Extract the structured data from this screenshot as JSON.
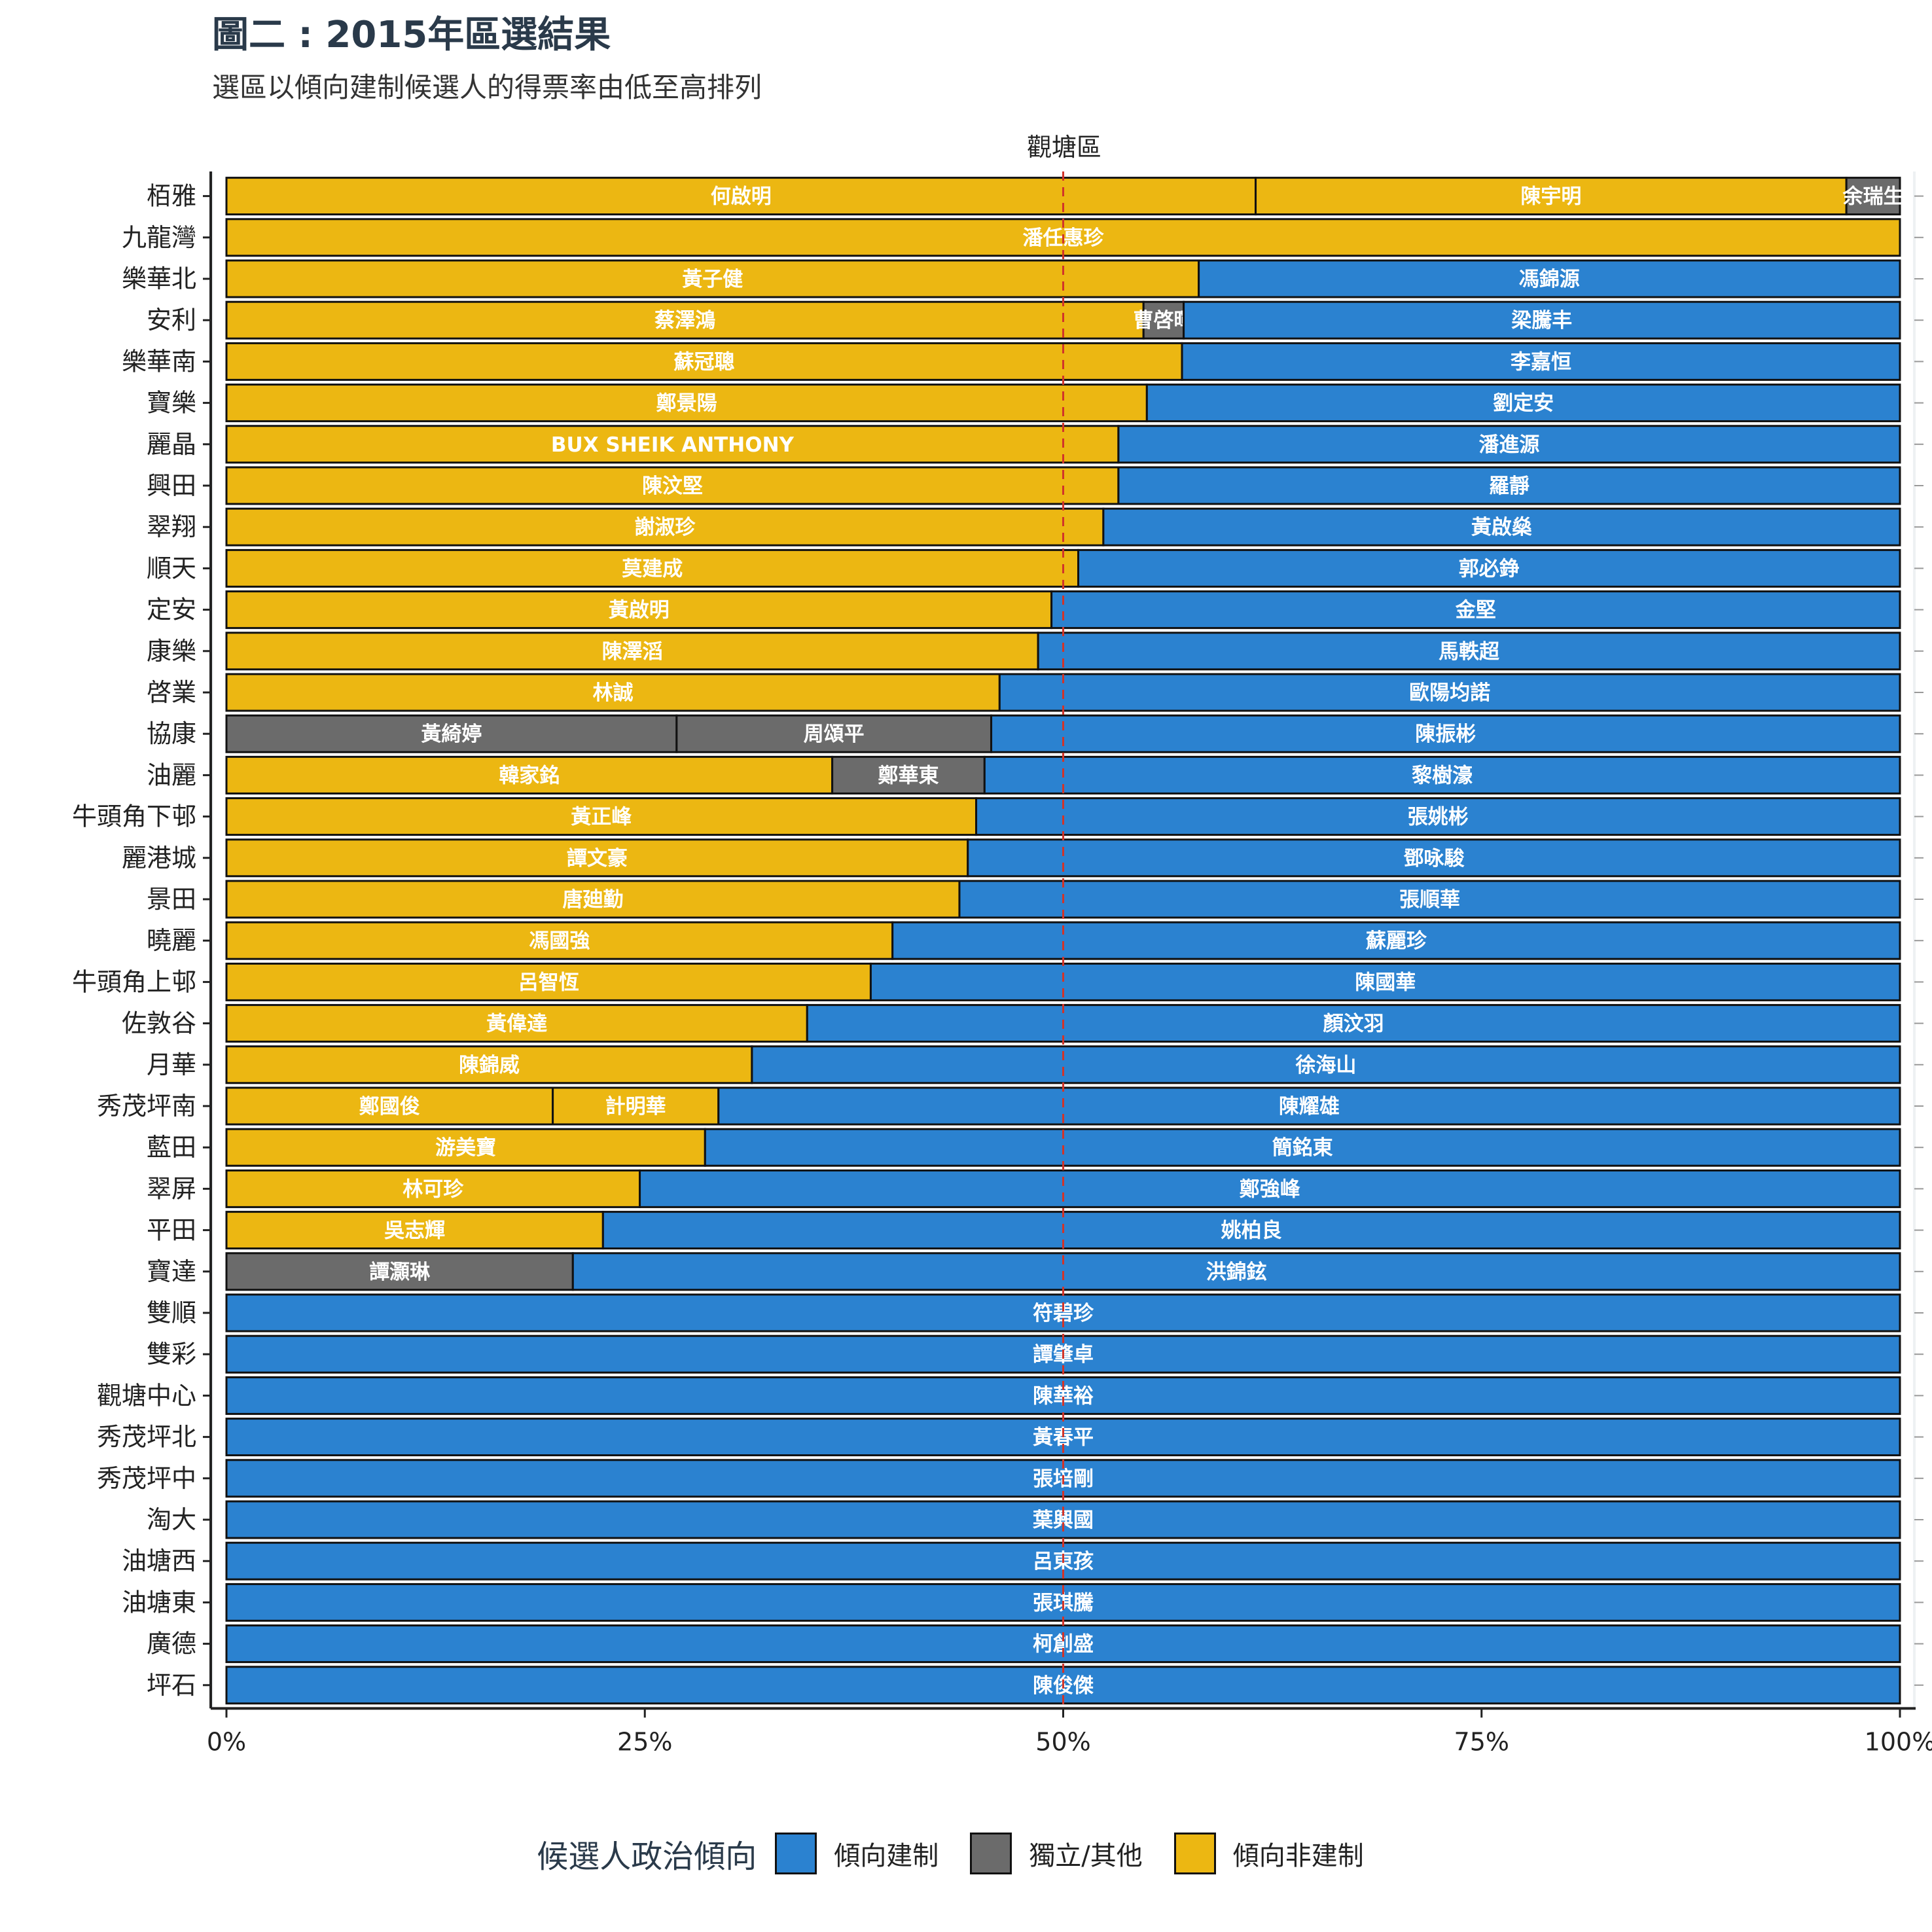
{
  "title": "圖二 : 2015年區選結果",
  "subtitle": "選區以傾向建制候選人的得票率由低至高排列",
  "colors": {
    "傾向建制": "#2b82d0",
    "獨立/其他": "#6b6b6b",
    "傾向非建制": "#ecb712",
    "reference_line": "#d1342a"
  },
  "legend": {
    "title": "候選人政治傾向",
    "items": [
      {
        "label": "傾向建制",
        "key": "傾向建制"
      },
      {
        "label": "獨立/其他",
        "key": "獨立/其他"
      },
      {
        "label": "傾向非建制",
        "key": "傾向非建制"
      }
    ]
  },
  "chart_data": {
    "type": "bar",
    "orientation": "horizontal",
    "stacked": "percent",
    "facet_label": "觀塘區",
    "x_ticks": [
      "0%",
      "25%",
      "50%",
      "75%",
      "100%"
    ],
    "xlim": [
      0,
      100
    ],
    "reference_line_x": 50,
    "legend_position": "bottom",
    "rows": [
      {
        "district": "栢雅",
        "segments": [
          {
            "name": "何啟明",
            "camp": "傾向非建制",
            "share": 61.5
          },
          {
            "name": "陳宇明",
            "camp": "傾向非建制",
            "share": 35.3
          },
          {
            "name": "余瑞生",
            "camp": "獨立/其他",
            "share": 3.2
          }
        ]
      },
      {
        "district": "九龍灣",
        "segments": [
          {
            "name": "潘任惠珍",
            "camp": "傾向非建制",
            "share": 100
          }
        ]
      },
      {
        "district": "樂華北",
        "segments": [
          {
            "name": "黃子健",
            "camp": "傾向非建制",
            "share": 58.1
          },
          {
            "name": "馮錦源",
            "camp": "傾向建制",
            "share": 41.9
          }
        ]
      },
      {
        "district": "安利",
        "segments": [
          {
            "name": "蔡澤鴻",
            "camp": "傾向非建制",
            "share": 54.8
          },
          {
            "name": "曹啓暉",
            "camp": "獨立/其他",
            "share": 2.4
          },
          {
            "name": "梁騰丰",
            "camp": "傾向建制",
            "share": 42.8
          }
        ]
      },
      {
        "district": "樂華南",
        "segments": [
          {
            "name": "蘇冠聰",
            "camp": "傾向非建制",
            "share": 57.1
          },
          {
            "name": "李嘉恒",
            "camp": "傾向建制",
            "share": 42.9
          }
        ]
      },
      {
        "district": "寶樂",
        "segments": [
          {
            "name": "鄭景陽",
            "camp": "傾向非建制",
            "share": 55.0
          },
          {
            "name": "劉定安",
            "camp": "傾向建制",
            "share": 45.0
          }
        ]
      },
      {
        "district": "麗晶",
        "segments": [
          {
            "name": "BUX SHEIK ANTHONY",
            "camp": "傾向非建制",
            "share": 53.3
          },
          {
            "name": "潘進源",
            "camp": "傾向建制",
            "share": 46.7
          }
        ]
      },
      {
        "district": "興田",
        "segments": [
          {
            "name": "陳汶堅",
            "camp": "傾向非建制",
            "share": 53.3
          },
          {
            "name": "羅靜",
            "camp": "傾向建制",
            "share": 46.7
          }
        ]
      },
      {
        "district": "翠翔",
        "segments": [
          {
            "name": "謝淑珍",
            "camp": "傾向非建制",
            "share": 52.4
          },
          {
            "name": "黃啟燊",
            "camp": "傾向建制",
            "share": 47.6
          }
        ]
      },
      {
        "district": "順天",
        "segments": [
          {
            "name": "莫建成",
            "camp": "傾向非建制",
            "share": 50.9
          },
          {
            "name": "郭必錚",
            "camp": "傾向建制",
            "share": 49.1
          }
        ]
      },
      {
        "district": "定安",
        "segments": [
          {
            "name": "黃啟明",
            "camp": "傾向非建制",
            "share": 49.3
          },
          {
            "name": "金堅",
            "camp": "傾向建制",
            "share": 50.7
          }
        ]
      },
      {
        "district": "康樂",
        "segments": [
          {
            "name": "陳澤滔",
            "camp": "傾向非建制",
            "share": 48.5
          },
          {
            "name": "馬軼超",
            "camp": "傾向建制",
            "share": 51.5
          }
        ]
      },
      {
        "district": "啓業",
        "segments": [
          {
            "name": "林誠",
            "camp": "傾向非建制",
            "share": 46.2
          },
          {
            "name": "歐陽均諾",
            "camp": "傾向建制",
            "share": 53.8
          }
        ]
      },
      {
        "district": "協康",
        "segments": [
          {
            "name": "黃綺婷",
            "camp": "獨立/其他",
            "share": 26.9
          },
          {
            "name": "周頌平",
            "camp": "獨立/其他",
            "share": 18.8
          },
          {
            "name": "陳振彬",
            "camp": "傾向建制",
            "share": 54.3
          }
        ]
      },
      {
        "district": "油麗",
        "segments": [
          {
            "name": "韓家銘",
            "camp": "傾向非建制",
            "share": 36.2
          },
          {
            "name": "鄭華東",
            "camp": "獨立/其他",
            "share": 9.1
          },
          {
            "name": "黎樹濠",
            "camp": "傾向建制",
            "share": 54.7
          }
        ]
      },
      {
        "district": "牛頭角下邨",
        "segments": [
          {
            "name": "黃正峰",
            "camp": "傾向非建制",
            "share": 44.8
          },
          {
            "name": "張姚彬",
            "camp": "傾向建制",
            "share": 55.2
          }
        ]
      },
      {
        "district": "麗港城",
        "segments": [
          {
            "name": "譚文豪",
            "camp": "傾向非建制",
            "share": 44.3
          },
          {
            "name": "鄧咏駿",
            "camp": "傾向建制",
            "share": 55.7
          }
        ]
      },
      {
        "district": "景田",
        "segments": [
          {
            "name": "唐廸勤",
            "camp": "傾向非建制",
            "share": 43.8
          },
          {
            "name": "張順華",
            "camp": "傾向建制",
            "share": 56.2
          }
        ]
      },
      {
        "district": "曉麗",
        "segments": [
          {
            "name": "馮國強",
            "camp": "傾向非建制",
            "share": 39.8
          },
          {
            "name": "蘇麗珍",
            "camp": "傾向建制",
            "share": 60.2
          }
        ]
      },
      {
        "district": "牛頭角上邨",
        "segments": [
          {
            "name": "呂智恆",
            "camp": "傾向非建制",
            "share": 38.5
          },
          {
            "name": "陳國華",
            "camp": "傾向建制",
            "share": 61.5
          }
        ]
      },
      {
        "district": "佐敦谷",
        "segments": [
          {
            "name": "黃偉達",
            "camp": "傾向非建制",
            "share": 34.7
          },
          {
            "name": "顏汶羽",
            "camp": "傾向建制",
            "share": 65.3
          }
        ]
      },
      {
        "district": "月華",
        "segments": [
          {
            "name": "陳錦威",
            "camp": "傾向非建制",
            "share": 31.4
          },
          {
            "name": "徐海山",
            "camp": "傾向建制",
            "share": 68.6
          }
        ]
      },
      {
        "district": "秀茂坪南",
        "segments": [
          {
            "name": "鄭國俊",
            "camp": "傾向非建制",
            "share": 19.5
          },
          {
            "name": "計明華",
            "camp": "傾向非建制",
            "share": 9.9
          },
          {
            "name": "陳耀雄",
            "camp": "傾向建制",
            "share": 70.6
          }
        ]
      },
      {
        "district": "藍田",
        "segments": [
          {
            "name": "游美寶",
            "camp": "傾向非建制",
            "share": 28.6
          },
          {
            "name": "簡銘東",
            "camp": "傾向建制",
            "share": 71.4
          }
        ]
      },
      {
        "district": "翠屏",
        "segments": [
          {
            "name": "林可珍",
            "camp": "傾向非建制",
            "share": 24.7
          },
          {
            "name": "鄭強峰",
            "camp": "傾向建制",
            "share": 75.3
          }
        ]
      },
      {
        "district": "平田",
        "segments": [
          {
            "name": "吳志輝",
            "camp": "傾向非建制",
            "share": 22.5
          },
          {
            "name": "姚柏良",
            "camp": "傾向建制",
            "share": 77.5
          }
        ]
      },
      {
        "district": "寶達",
        "segments": [
          {
            "name": "譚灝琳",
            "camp": "獨立/其他",
            "share": 20.7
          },
          {
            "name": "洪錦鉉",
            "camp": "傾向建制",
            "share": 79.3
          }
        ]
      },
      {
        "district": "雙順",
        "segments": [
          {
            "name": "符碧珍",
            "camp": "傾向建制",
            "share": 100
          }
        ]
      },
      {
        "district": "雙彩",
        "segments": [
          {
            "name": "譚肇卓",
            "camp": "傾向建制",
            "share": 100
          }
        ]
      },
      {
        "district": "觀塘中心",
        "segments": [
          {
            "name": "陳華裕",
            "camp": "傾向建制",
            "share": 100
          }
        ]
      },
      {
        "district": "秀茂坪北",
        "segments": [
          {
            "name": "黃春平",
            "camp": "傾向建制",
            "share": 100
          }
        ]
      },
      {
        "district": "秀茂坪中",
        "segments": [
          {
            "name": "張培剛",
            "camp": "傾向建制",
            "share": 100
          }
        ]
      },
      {
        "district": "淘大",
        "segments": [
          {
            "name": "葉興國",
            "camp": "傾向建制",
            "share": 100
          }
        ]
      },
      {
        "district": "油塘西",
        "segments": [
          {
            "name": "呂東孩",
            "camp": "傾向建制",
            "share": 100
          }
        ]
      },
      {
        "district": "油塘東",
        "segments": [
          {
            "name": "張琪騰",
            "camp": "傾向建制",
            "share": 100
          }
        ]
      },
      {
        "district": "廣德",
        "segments": [
          {
            "name": "柯創盛",
            "camp": "傾向建制",
            "share": 100
          }
        ]
      },
      {
        "district": "坪石",
        "segments": [
          {
            "name": "陳俊傑",
            "camp": "傾向建制",
            "share": 100
          }
        ]
      }
    ]
  }
}
